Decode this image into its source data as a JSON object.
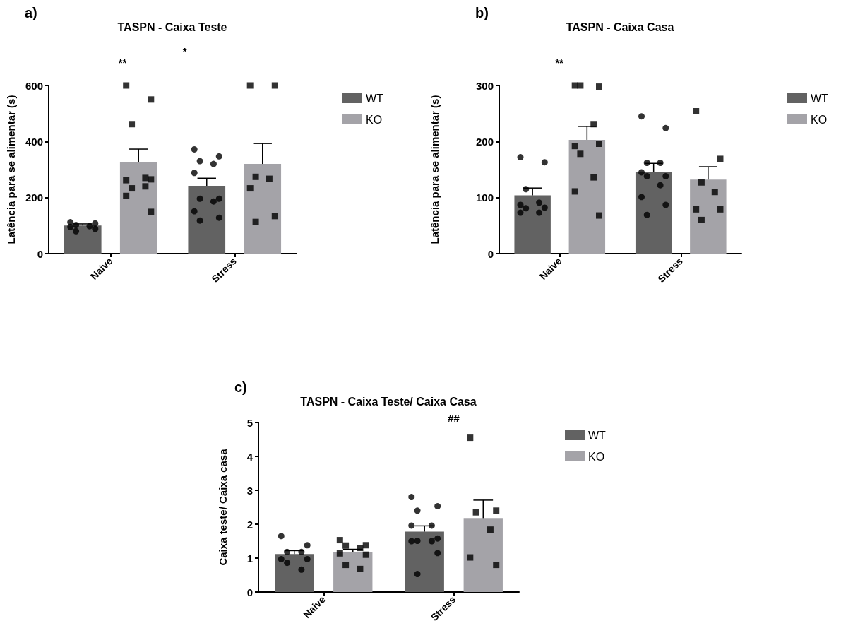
{
  "chart_data": [
    {
      "type": "bar",
      "title": "a)",
      "subtitle": "TASPN - Caixa Teste",
      "ylabel": "Latência para se alimentar (s)",
      "categories": [
        "Naive",
        "Stress"
      ],
      "ylim": [
        0,
        600
      ],
      "yticks": [
        0,
        200,
        400,
        600
      ],
      "grid": false,
      "legend": "right",
      "annotations": [
        "**",
        "*"
      ],
      "series": [
        {
          "name": "WT",
          "color": "#626262",
          "values": [
            100,
            242
          ],
          "errors": [
            [
              100,
              106
            ],
            [
              242,
              269
            ]
          ]
        },
        {
          "name": "KO",
          "color": "#a4a3a8",
          "values": [
            327,
            320
          ],
          "errors": [
            [
              327,
              373
            ],
            [
              320,
              393
            ]
          ]
        },
        {
          "type": "scatter",
          "color": "#000000",
          "marker": "circle",
          "x": [
            "Naive",
            "Naive",
            "Naive",
            "Naive",
            "Naive",
            "Naive",
            "Naive",
            "Stress",
            "Stress",
            "Stress",
            "Stress",
            "Stress",
            "Stress",
            "Stress",
            "Stress",
            "Stress",
            "Stress",
            "Stress"
          ],
          "values": [
            112,
            108,
            102,
            98,
            95,
            88,
            80,
            372,
            347,
            330,
            320,
            288,
            196,
            196,
            186,
            151,
            128,
            118
          ]
        },
        {
          "type": "scatter",
          "color": "#000000",
          "marker": "square",
          "x": [
            "Naive",
            "Naive",
            "Naive",
            "Naive",
            "Naive",
            "Naive",
            "Naive",
            "Naive",
            "Naive",
            "Naive",
            "Stress",
            "Stress",
            "Stress",
            "Stress",
            "Stress",
            "Stress",
            "Stress"
          ],
          "values": [
            600,
            550,
            462,
            270,
            262,
            265,
            233,
            240,
            206,
            149,
            600,
            600,
            274,
            267,
            233,
            134,
            113
          ]
        }
      ]
    },
    {
      "type": "bar",
      "title": "b)",
      "subtitle": "TASPN - Caixa Casa",
      "ylabel": "Latência para se alimentar (s)",
      "categories": [
        "Naive",
        "Stress"
      ],
      "ylim": [
        0,
        300
      ],
      "yticks": [
        0,
        100,
        200,
        300
      ],
      "grid": false,
      "legend": "right",
      "annotations": [
        "**"
      ],
      "series": [
        {
          "name": "WT",
          "color": "#626262",
          "values": [
            104,
            145
          ],
          "errors": [
            [
              104,
              117
            ],
            [
              145,
              161
            ]
          ]
        },
        {
          "name": "KO",
          "color": "#a4a3a8",
          "values": [
            203,
            132
          ],
          "errors": [
            [
              203,
              227
            ],
            [
              132,
              155
            ]
          ]
        },
        {
          "type": "scatter",
          "color": "#000000",
          "marker": "circle",
          "x": [
            "Naive",
            "Naive",
            "Naive",
            "Naive",
            "Naive",
            "Naive",
            "Naive",
            "Naive",
            "Naive",
            "Stress",
            "Stress",
            "Stress",
            "Stress",
            "Stress",
            "Stress",
            "Stress",
            "Stress",
            "Stress",
            "Stress",
            "Stress"
          ],
          "values": [
            172,
            163,
            115,
            91,
            87,
            82,
            81,
            73,
            73,
            245,
            224,
            162,
            162,
            145,
            138,
            138,
            122,
            101,
            87,
            69
          ]
        },
        {
          "type": "scatter",
          "color": "#000000",
          "marker": "square",
          "x": [
            "Naive",
            "Naive",
            "Naive",
            "Naive",
            "Naive",
            "Naive",
            "Naive",
            "Naive",
            "Naive",
            "Naive",
            "Stress",
            "Stress",
            "Stress",
            "Stress",
            "Stress",
            "Stress",
            "Stress"
          ],
          "values": [
            300,
            298,
            300,
            231,
            192,
            196,
            178,
            136,
            111,
            68,
            254,
            169,
            127,
            110,
            79,
            79,
            60
          ]
        }
      ]
    },
    {
      "type": "bar",
      "title": "c)",
      "subtitle": "TASPN - Caixa Teste/ Caixa Casa",
      "ylabel": "Caixa teste/ Caixa casa",
      "categories": [
        "Naive",
        "Stress"
      ],
      "ylim": [
        0,
        5
      ],
      "yticks": [
        0,
        1,
        2,
        3,
        4,
        5
      ],
      "grid": false,
      "legend": "right",
      "annotations": [
        "##"
      ],
      "series": [
        {
          "name": "WT",
          "color": "#626262",
          "values": [
            1.12,
            1.78
          ],
          "errors": [
            [
              1.12,
              1.22
            ],
            [
              1.78,
              1.95
            ]
          ]
        },
        {
          "name": "KO",
          "color": "#a4a3a8",
          "values": [
            1.19,
            2.18
          ],
          "errors": [
            [
              1.19,
              1.26
            ],
            [
              2.18,
              2.71
            ]
          ]
        },
        {
          "type": "scatter",
          "color": "#000000",
          "marker": "circle",
          "x": [
            "Naive",
            "Naive",
            "Naive",
            "Naive",
            "Naive",
            "Naive",
            "Naive",
            "Naive",
            "Stress",
            "Stress",
            "Stress",
            "Stress",
            "Stress",
            "Stress",
            "Stress",
            "Stress",
            "Stress",
            "Stress",
            "Stress"
          ],
          "values": [
            1.65,
            1.38,
            1.18,
            1.18,
            0.97,
            0.97,
            0.86,
            0.66,
            2.8,
            2.53,
            2.4,
            1.96,
            1.96,
            1.58,
            1.51,
            1.5,
            1.5,
            1.15,
            0.53
          ]
        },
        {
          "type": "scatter",
          "color": "#000000",
          "marker": "square",
          "x": [
            "Naive",
            "Naive",
            "Naive",
            "Naive",
            "Naive",
            "Naive",
            "Naive",
            "Naive",
            "Stress",
            "Stress",
            "Stress",
            "Stress",
            "Stress",
            "Stress"
          ],
          "values": [
            1.53,
            1.38,
            1.37,
            1.3,
            1.14,
            1.1,
            0.8,
            0.68,
            4.55,
            2.4,
            2.35,
            1.84,
            1.02,
            0.8
          ]
        }
      ]
    }
  ]
}
